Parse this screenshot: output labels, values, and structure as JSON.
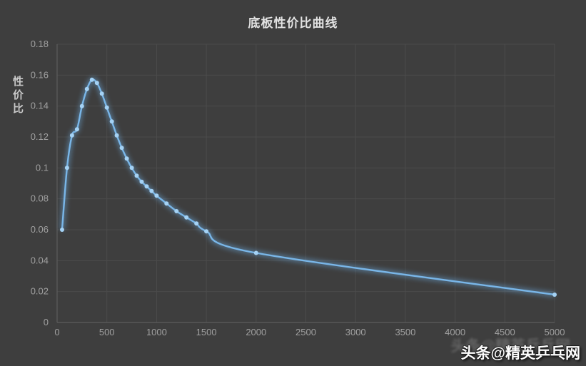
{
  "page": {
    "background": "#3e3e3e"
  },
  "chart_data": {
    "type": "line",
    "title": "底板性价比曲线",
    "xlabel": "",
    "ylabel": "性价比",
    "series_name": "性价比",
    "x": [
      50,
      100,
      150,
      200,
      250,
      300,
      350,
      400,
      450,
      500,
      550,
      600,
      650,
      700,
      750,
      800,
      850,
      900,
      950,
      1000,
      1100,
      1200,
      1300,
      1400,
      1500,
      2000,
      5000
    ],
    "y": [
      0.06,
      0.1,
      0.121,
      0.125,
      0.14,
      0.151,
      0.157,
      0.155,
      0.148,
      0.139,
      0.13,
      0.121,
      0.113,
      0.106,
      0.1,
      0.095,
      0.091,
      0.088,
      0.085,
      0.082,
      0.077,
      0.072,
      0.068,
      0.064,
      0.059,
      0.045,
      0.018
    ],
    "xlim": [
      0,
      5000
    ],
    "ylim": [
      0,
      0.18
    ],
    "xticks": [
      0,
      500,
      1000,
      1500,
      2000,
      2500,
      3000,
      3500,
      4000,
      4500,
      5000
    ],
    "xtick_labels": [
      "0",
      "500",
      "1000",
      "1500",
      "2000",
      "2500",
      "3000",
      "3500",
      "4000",
      "4500",
      "5000"
    ],
    "yticks": [
      0,
      0.02,
      0.04,
      0.06,
      0.08,
      0.1,
      0.12,
      0.14,
      0.16,
      0.18
    ],
    "ytick_labels": [
      "0",
      "0.02",
      "0.04",
      "0.06",
      "0.08",
      "0.1",
      "0.12",
      "0.14",
      "0.16",
      "0.18"
    ],
    "grid": true,
    "legend": "none",
    "colors": {
      "line": "#79b6e8",
      "line_glow": "#6fb0e6",
      "point": "#a4d2f5",
      "grid": "#4b4b4b",
      "axis": "#5d5d5d",
      "tick_text": "#a0a0a0",
      "title_text": "#e2e2e2",
      "background": "#3e3e3e"
    }
  },
  "watermark": {
    "text": "头条@精英乒乓网"
  }
}
